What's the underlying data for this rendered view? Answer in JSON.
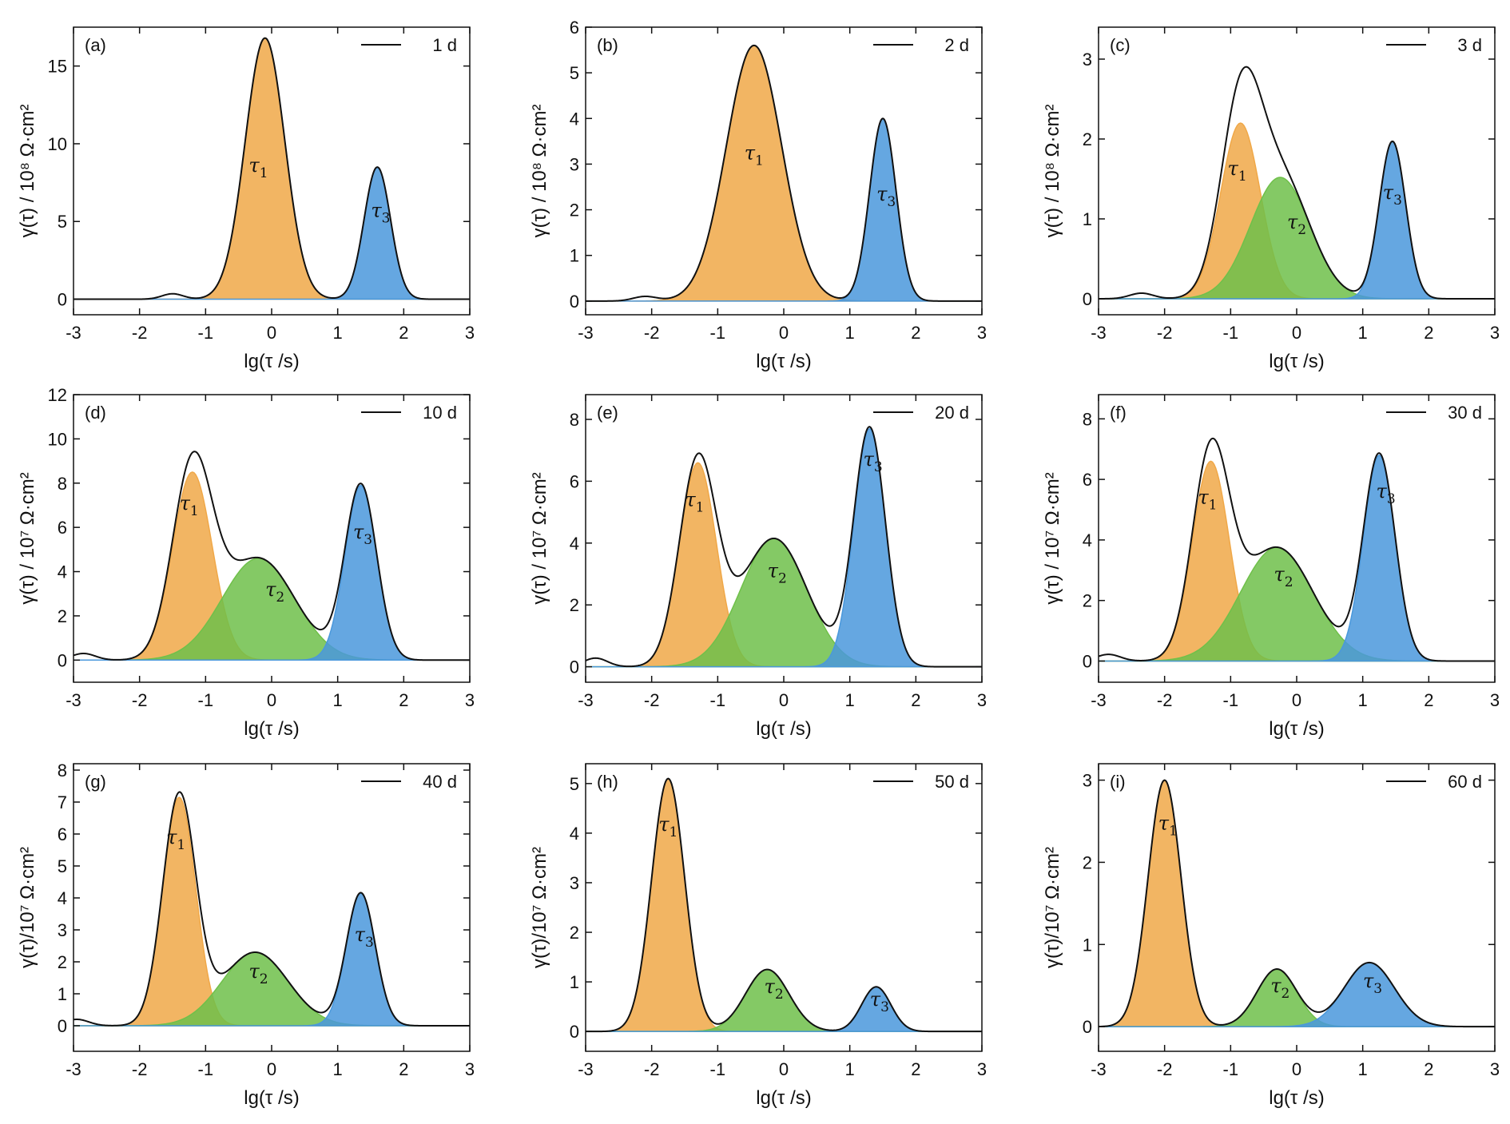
{
  "colors": {
    "tau1": "#F0A848",
    "tau2": "#6FC04A",
    "tau3": "#4A98DC",
    "envelope": "#111111"
  },
  "chart_data": [
    {
      "panel": "(a)",
      "type": "area",
      "legend": "1 d",
      "xlabel": "lg(τ /s)",
      "ylabel": "γ(τ) / 10⁸ Ω·cm²",
      "xlim": [
        -3,
        3
      ],
      "ylim": [
        -1,
        17.5
      ],
      "xticks": [
        -3,
        -2,
        -1,
        0,
        1,
        2,
        3
      ],
      "yticks": [
        0,
        5,
        10,
        15
      ],
      "peaks": [
        {
          "label": "τ",
          "sub": "1",
          "center": -0.1,
          "height": 16.8,
          "width": 0.3,
          "color": "tau1",
          "label_at": [
            -0.2,
            8.2
          ]
        },
        {
          "label": "τ",
          "sub": "3",
          "center": 1.6,
          "height": 8.5,
          "width": 0.2,
          "color": "tau3",
          "label_at": [
            1.65,
            5.3
          ]
        }
      ],
      "envelope_bumps": [
        {
          "center": -1.5,
          "height": 0.35,
          "width": 0.16
        }
      ]
    },
    {
      "panel": "(b)",
      "type": "area",
      "legend": "2 d",
      "xlabel": "lg(τ /s)",
      "ylabel": "γ(τ) / 10⁸ Ω·cm²",
      "xlim": [
        -3,
        3
      ],
      "ylim": [
        -0.3,
        6
      ],
      "xticks": [
        -3,
        -2,
        -1,
        0,
        1,
        2,
        3
      ],
      "yticks": [
        0,
        1,
        2,
        3,
        4,
        5,
        6
      ],
      "peaks": [
        {
          "label": "τ",
          "sub": "1",
          "center": -0.45,
          "height": 5.6,
          "width": 0.42,
          "color": "tau1",
          "label_at": [
            -0.45,
            3.1
          ]
        },
        {
          "label": "τ",
          "sub": "3",
          "center": 1.5,
          "height": 4.0,
          "width": 0.2,
          "color": "tau3",
          "label_at": [
            1.55,
            2.2
          ]
        }
      ],
      "envelope_bumps": [
        {
          "center": -2.1,
          "height": 0.1,
          "width": 0.18
        }
      ]
    },
    {
      "panel": "(c)",
      "type": "area",
      "legend": "3 d",
      "xlabel": "lg(τ /s)",
      "ylabel": "γ(τ) / 10⁸ Ω·cm²",
      "xlim": [
        -3,
        3
      ],
      "ylim": [
        -0.2,
        3.4
      ],
      "xticks": [
        -3,
        -2,
        -1,
        0,
        1,
        2,
        3
      ],
      "yticks": [
        0,
        1,
        2,
        3
      ],
      "peaks": [
        {
          "label": "τ",
          "sub": "1",
          "center": -0.85,
          "height": 2.2,
          "width": 0.3,
          "color": "tau1",
          "label_at": [
            -0.9,
            1.55
          ]
        },
        {
          "label": "τ",
          "sub": "2",
          "center": -0.25,
          "height": 1.52,
          "width": 0.45,
          "color": "tau2",
          "label_at": [
            0.0,
            0.88
          ]
        },
        {
          "label": "τ",
          "sub": "3",
          "center": 1.45,
          "height": 1.97,
          "width": 0.2,
          "color": "tau3",
          "label_at": [
            1.45,
            1.25
          ]
        }
      ],
      "envelope_bumps": [
        {
          "center": -2.35,
          "height": 0.07,
          "width": 0.18
        }
      ]
    },
    {
      "panel": "(d)",
      "type": "area",
      "legend": "10 d",
      "xlabel": "lg(τ /s)",
      "ylabel": "γ(τ) / 10⁷ Ω·cm²",
      "xlim": [
        -3,
        3
      ],
      "ylim": [
        -1,
        12
      ],
      "xticks": [
        -3,
        -2,
        -1,
        0,
        1,
        2,
        3
      ],
      "yticks": [
        0,
        2,
        4,
        6,
        8,
        10,
        12
      ],
      "peaks": [
        {
          "label": "τ",
          "sub": "1",
          "center": -1.2,
          "height": 8.5,
          "width": 0.3,
          "color": "tau1",
          "label_at": [
            -1.25,
            6.8
          ]
        },
        {
          "label": "τ",
          "sub": "2",
          "center": -0.2,
          "height": 4.6,
          "width": 0.55,
          "color": "tau2",
          "label_at": [
            0.05,
            2.9
          ]
        },
        {
          "label": "τ",
          "sub": "3",
          "center": 1.35,
          "height": 7.9,
          "width": 0.24,
          "color": "tau3",
          "label_at": [
            1.38,
            5.5
          ]
        }
      ],
      "envelope_bumps": [
        {
          "center": -2.85,
          "height": 0.3,
          "width": 0.18
        }
      ]
    },
    {
      "panel": "(e)",
      "type": "area",
      "legend": "20 d",
      "xlabel": "lg(τ /s)",
      "ylabel": "γ(τ) / 10⁷ Ω·cm²",
      "xlim": [
        -3,
        3
      ],
      "ylim": [
        -0.5,
        8.8
      ],
      "xticks": [
        -3,
        -2,
        -1,
        0,
        1,
        2,
        3
      ],
      "yticks": [
        0,
        2,
        4,
        6,
        8
      ],
      "peaks": [
        {
          "label": "τ",
          "sub": "1",
          "center": -1.3,
          "height": 6.6,
          "width": 0.28,
          "color": "tau1",
          "label_at": [
            -1.35,
            5.2
          ]
        },
        {
          "label": "τ",
          "sub": "2",
          "center": -0.15,
          "height": 4.15,
          "width": 0.5,
          "color": "tau2",
          "label_at": [
            -0.1,
            2.9
          ]
        },
        {
          "label": "τ",
          "sub": "3",
          "center": 1.3,
          "height": 7.7,
          "width": 0.24,
          "color": "tau3",
          "label_at": [
            1.35,
            6.5
          ]
        }
      ],
      "envelope_bumps": [
        {
          "center": -2.85,
          "height": 0.28,
          "width": 0.18
        }
      ]
    },
    {
      "panel": "(f)",
      "type": "area",
      "legend": "30 d",
      "xlabel": "lg(τ /s)",
      "ylabel": "γ(τ) / 10⁷ Ω·cm²",
      "xlim": [
        -3,
        3
      ],
      "ylim": [
        -0.7,
        8.8
      ],
      "xticks": [
        -3,
        -2,
        -1,
        0,
        1,
        2,
        3
      ],
      "yticks": [
        0,
        2,
        4,
        6,
        8
      ],
      "peaks": [
        {
          "label": "τ",
          "sub": "1",
          "center": -1.3,
          "height": 6.6,
          "width": 0.28,
          "color": "tau1",
          "label_at": [
            -1.35,
            5.2
          ]
        },
        {
          "label": "τ",
          "sub": "2",
          "center": -0.3,
          "height": 3.75,
          "width": 0.55,
          "color": "tau2",
          "label_at": [
            -0.2,
            2.65
          ]
        },
        {
          "label": "τ",
          "sub": "3",
          "center": 1.25,
          "height": 6.8,
          "width": 0.24,
          "color": "tau3",
          "label_at": [
            1.35,
            5.4
          ]
        }
      ],
      "envelope_bumps": [
        {
          "center": -2.85,
          "height": 0.22,
          "width": 0.18
        }
      ]
    },
    {
      "panel": "(g)",
      "type": "area",
      "legend": "40 d",
      "xlabel": "lg(τ /s)",
      "ylabel": "γ(τ)/10⁷ Ω·cm²",
      "xlim": [
        -3,
        3
      ],
      "ylim": [
        -0.8,
        8.2
      ],
      "xticks": [
        -3,
        -2,
        -1,
        0,
        1,
        2,
        3
      ],
      "yticks": [
        0,
        1,
        2,
        3,
        4,
        5,
        6,
        7,
        8
      ],
      "peaks": [
        {
          "label": "τ",
          "sub": "1",
          "center": -1.4,
          "height": 7.15,
          "width": 0.25,
          "color": "tau1",
          "label_at": [
            -1.45,
            5.7
          ]
        },
        {
          "label": "τ",
          "sub": "2",
          "center": -0.25,
          "height": 2.3,
          "width": 0.5,
          "color": "tau2",
          "label_at": [
            -0.2,
            1.5
          ]
        },
        {
          "label": "τ",
          "sub": "3",
          "center": 1.35,
          "height": 4.15,
          "width": 0.22,
          "color": "tau3",
          "label_at": [
            1.4,
            2.65
          ]
        }
      ],
      "envelope_bumps": [
        {
          "center": -2.95,
          "height": 0.2,
          "width": 0.18
        }
      ]
    },
    {
      "panel": "(h)",
      "type": "area",
      "legend": "50 d",
      "xlabel": "lg(τ /s)",
      "ylabel": "γ(τ)/10⁷ Ω·cm²",
      "xlim": [
        -3,
        3
      ],
      "ylim": [
        -0.4,
        5.4
      ],
      "xticks": [
        -3,
        -2,
        -1,
        0,
        1,
        2,
        3
      ],
      "yticks": [
        0,
        1,
        2,
        3,
        4,
        5
      ],
      "peaks": [
        {
          "label": "τ",
          "sub": "1",
          "center": -1.75,
          "height": 5.1,
          "width": 0.25,
          "color": "tau1",
          "label_at": [
            -1.75,
            4.05
          ]
        },
        {
          "label": "τ",
          "sub": "2",
          "center": -0.25,
          "height": 1.25,
          "width": 0.33,
          "color": "tau2",
          "label_at": [
            -0.15,
            0.78
          ]
        },
        {
          "label": "τ",
          "sub": "3",
          "center": 1.4,
          "height": 0.9,
          "width": 0.22,
          "color": "tau3",
          "label_at": [
            1.45,
            0.52
          ]
        }
      ],
      "envelope_bumps": []
    },
    {
      "panel": "(i)",
      "type": "area",
      "legend": "60 d",
      "xlabel": "lg(τ /s)",
      "ylabel": "γ(τ)/10⁷ Ω·cm²",
      "xlim": [
        -3,
        3
      ],
      "ylim": [
        -0.3,
        3.2
      ],
      "xticks": [
        -3,
        -2,
        -1,
        0,
        1,
        2,
        3
      ],
      "yticks": [
        0,
        1,
        2,
        3
      ],
      "peaks": [
        {
          "label": "τ",
          "sub": "1",
          "center": -2.0,
          "height": 3.0,
          "width": 0.25,
          "color": "tau1",
          "label_at": [
            -1.95,
            2.4
          ]
        },
        {
          "label": "τ",
          "sub": "2",
          "center": -0.3,
          "height": 0.7,
          "width": 0.3,
          "color": "tau2",
          "label_at": [
            -0.25,
            0.42
          ]
        },
        {
          "label": "τ",
          "sub": "3",
          "center": 1.1,
          "height": 0.78,
          "width": 0.38,
          "color": "tau3",
          "label_at": [
            1.15,
            0.48
          ]
        }
      ],
      "envelope_bumps": []
    }
  ]
}
